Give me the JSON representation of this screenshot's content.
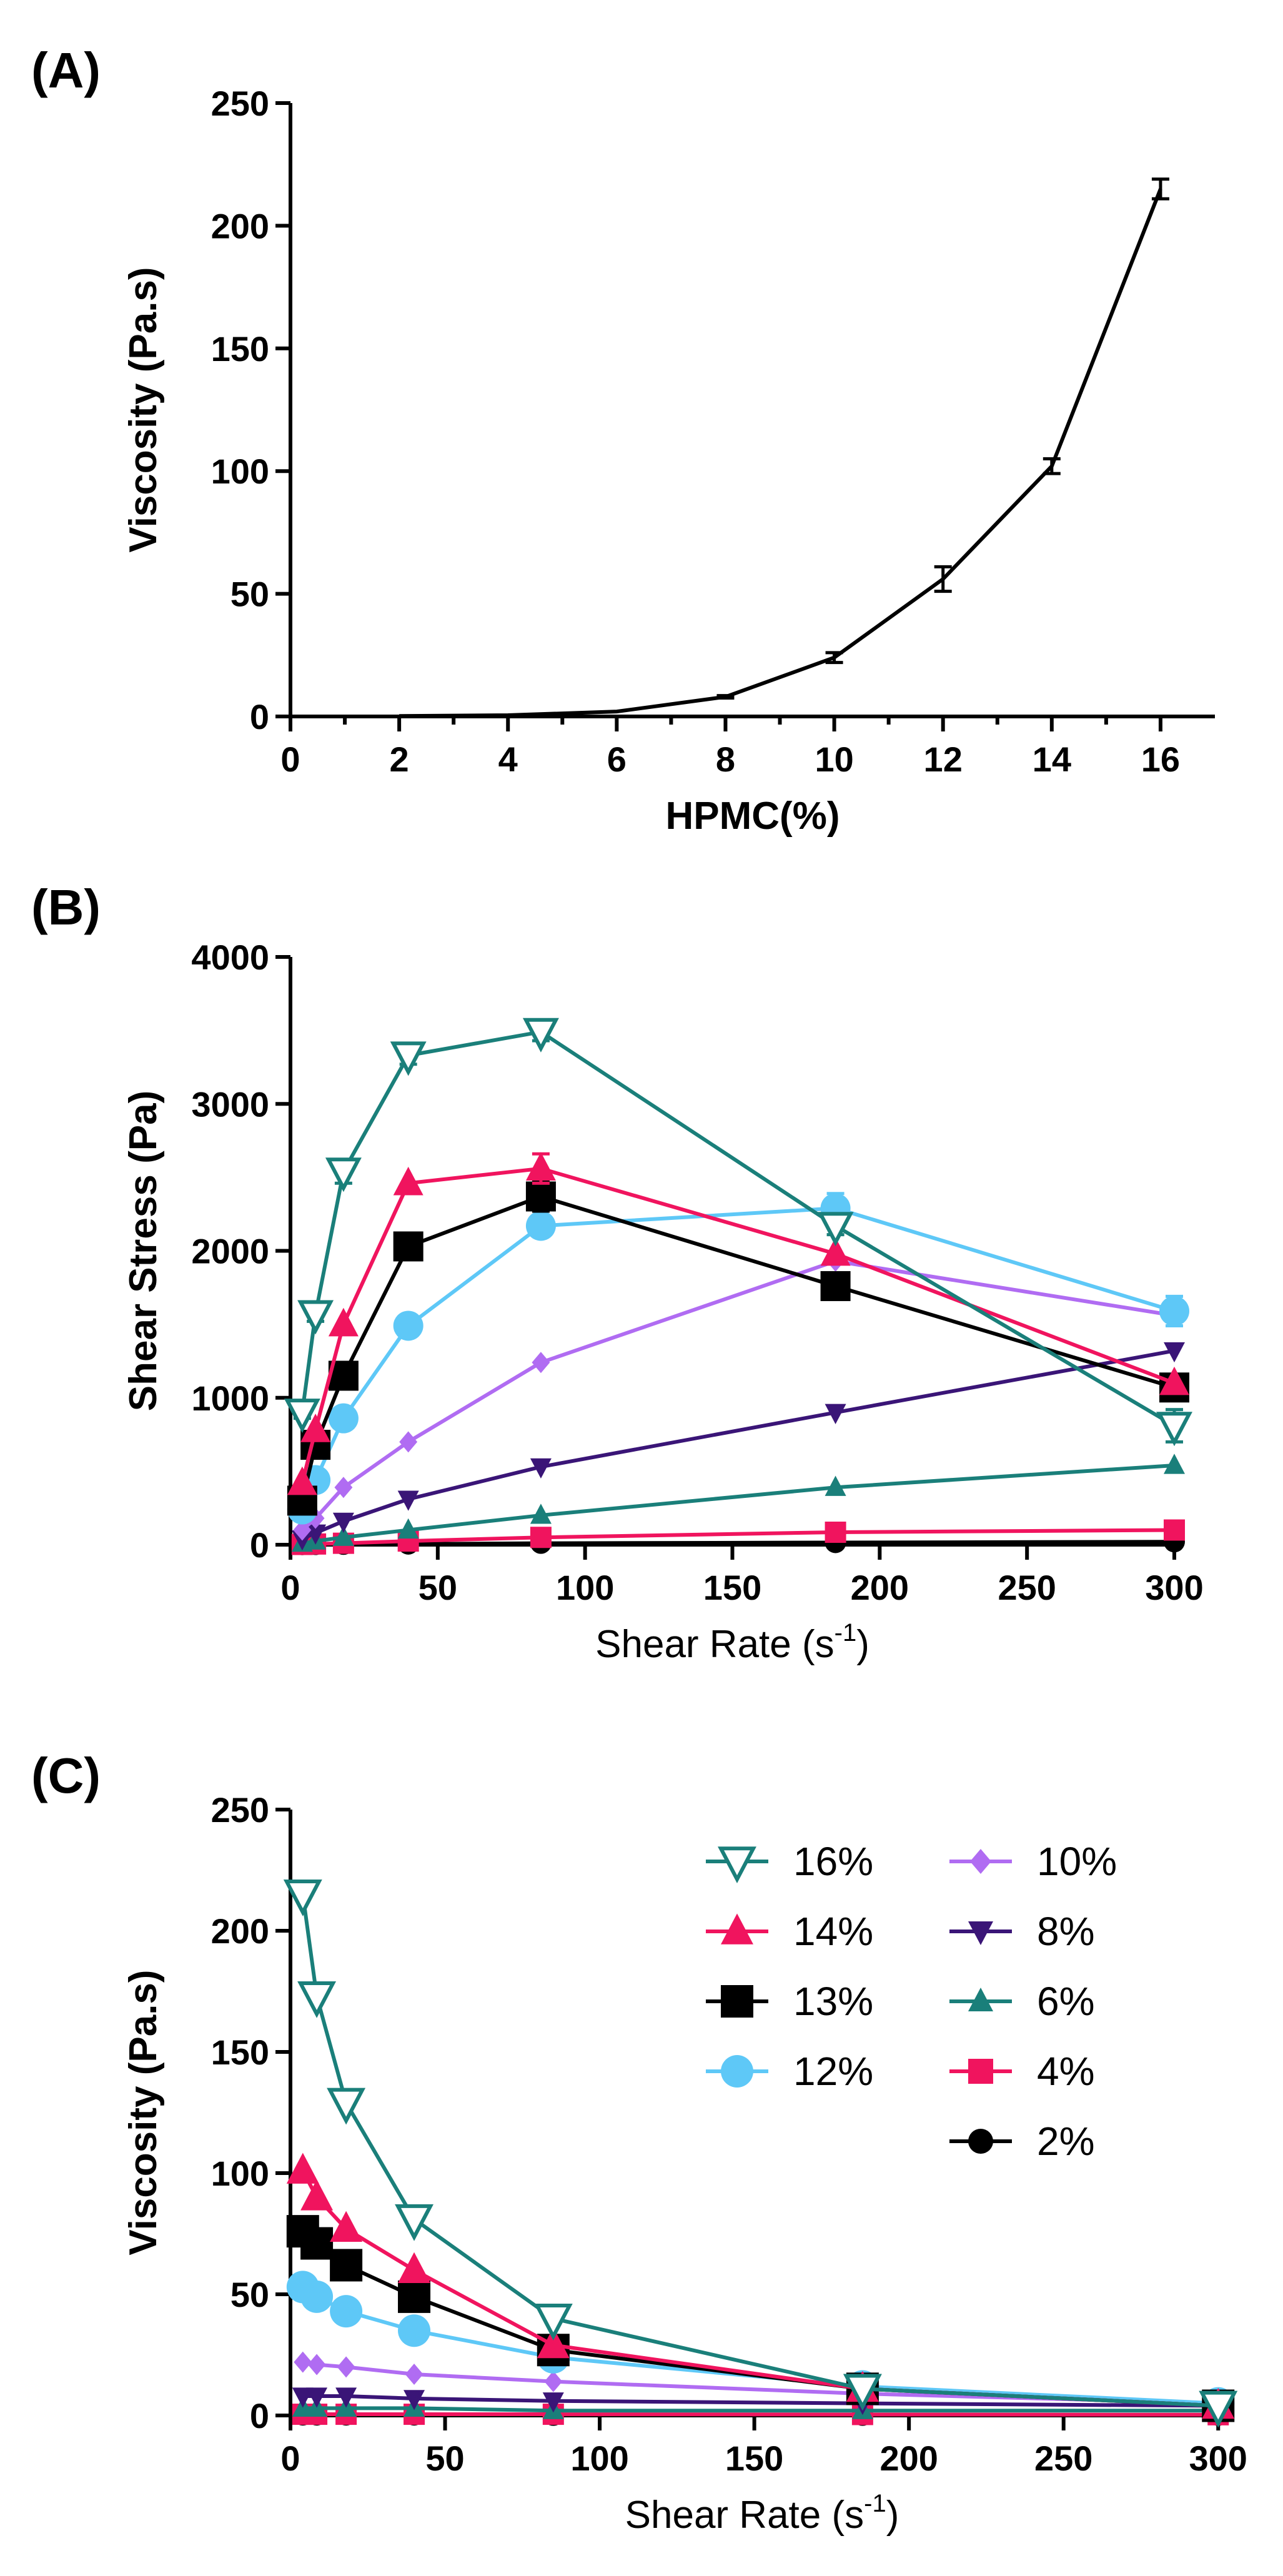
{
  "figure": {
    "panels": [
      {
        "label": "(A)"
      },
      {
        "label": "(B)"
      },
      {
        "label": "(C)"
      }
    ]
  },
  "chart_data": [
    {
      "type": "line",
      "title": "",
      "xlabel": "HPMC(%)",
      "ylabel": "Viscosity (Pa.s)",
      "xlim": [
        0,
        17
      ],
      "ylim": [
        0,
        250
      ],
      "xticks": [
        0,
        2,
        4,
        6,
        8,
        10,
        12,
        14,
        16
      ],
      "yticks": [
        0,
        50,
        100,
        150,
        200,
        250
      ],
      "series": [
        {
          "name": "Viscosity",
          "color": "#000000",
          "x": [
            2,
            4,
            6,
            8,
            10,
            12,
            14,
            16
          ],
          "y": [
            0.2,
            0.5,
            2,
            8,
            24,
            56,
            102,
            215
          ],
          "err": [
            0,
            0,
            0,
            0.5,
            2,
            5,
            3,
            4
          ]
        }
      ]
    },
    {
      "type": "line",
      "title": "",
      "xlabel": "Shear Rate (s",
      "xlabel_sup": "-1",
      "xlabel_end": ")",
      "ylabel": "Shear  Stress (Pa)",
      "xlim": [
        0,
        300
      ],
      "ylim": [
        0,
        4000
      ],
      "xticks": [
        0,
        50,
        100,
        150,
        200,
        250,
        300
      ],
      "yticks": [
        0,
        1000,
        2000,
        3000,
        4000
      ],
      "x": [
        4,
        8.5,
        18,
        40,
        85,
        185,
        300
      ],
      "series": [
        {
          "name": "16%",
          "color": "#1a7f7a",
          "marker": "triangle-down-open",
          "values": [
            900,
            1570,
            2540,
            3330,
            3490,
            2170,
            810
          ],
          "err": [
            40,
            50,
            80,
            60,
            60,
            60,
            110
          ]
        },
        {
          "name": "14%",
          "color": "#f0145e",
          "marker": "triangle-up",
          "values": [
            420,
            780,
            1500,
            2460,
            2560,
            1980,
            1100
          ],
          "err": [
            0,
            0,
            0,
            0,
            100,
            0,
            0
          ]
        },
        {
          "name": "13%",
          "color": "#000000",
          "marker": "square",
          "values": [
            300,
            680,
            1150,
            2030,
            2370,
            1760,
            1070
          ],
          "err": [
            0,
            0,
            0,
            60,
            100,
            0,
            0
          ]
        },
        {
          "name": "12%",
          "color": "#5ec8f7",
          "marker": "circle",
          "values": [
            240,
            440,
            860,
            1490,
            2170,
            2290,
            1590
          ],
          "err": [
            0,
            0,
            0,
            0,
            0,
            100,
            100
          ]
        },
        {
          "name": "10%",
          "color": "#b06cf2",
          "marker": "diamond",
          "values": [
            100,
            180,
            390,
            700,
            1240,
            1930,
            1560
          ],
          "err": [
            0,
            0,
            0,
            0,
            0,
            0,
            0
          ]
        },
        {
          "name": "8%",
          "color": "#3a1577",
          "marker": "triangle-down",
          "values": [
            40,
            80,
            160,
            310,
            530,
            900,
            1320
          ],
          "err": [
            0,
            0,
            0,
            0,
            0,
            0,
            0
          ]
        },
        {
          "name": "6%",
          "color": "#1a7f7a",
          "marker": "triangle-up",
          "values": [
            10,
            25,
            50,
            100,
            200,
            390,
            540
          ],
          "err": [
            0,
            0,
            0,
            0,
            0,
            0,
            0
          ]
        },
        {
          "name": "4%",
          "color": "#f0145e",
          "marker": "square",
          "values": [
            2,
            5,
            10,
            25,
            50,
            85,
            100
          ],
          "err": [
            0,
            0,
            0,
            0,
            0,
            0,
            0
          ]
        },
        {
          "name": "2%",
          "color": "#000000",
          "marker": "circle",
          "values": [
            1,
            2,
            3,
            5,
            10,
            15,
            20
          ],
          "err": [
            0,
            0,
            0,
            0,
            0,
            0,
            0
          ]
        }
      ]
    },
    {
      "type": "line",
      "title": "",
      "xlabel": "Shear Rate (s",
      "xlabel_sup": "-1",
      "xlabel_end": ")",
      "ylabel": "Viscosity (Pa.s)",
      "xlim": [
        0,
        305
      ],
      "ylim": [
        0,
        250
      ],
      "xticks": [
        0,
        50,
        100,
        150,
        200,
        250,
        300
      ],
      "yticks": [
        0,
        50,
        100,
        150,
        200,
        250
      ],
      "x": [
        4,
        8.5,
        18,
        40,
        85,
        185,
        300
      ],
      "legend_position": "top-right",
      "series": [
        {
          "name": "16%",
          "color": "#1a7f7a",
          "marker": "triangle-down-open",
          "values": [
            215,
            173,
            129,
            81,
            40,
            11,
            4
          ]
        },
        {
          "name": "14%",
          "color": "#f0145e",
          "marker": "triangle-up",
          "values": [
            101,
            90,
            77,
            60,
            29,
            11,
            4
          ]
        },
        {
          "name": "13%",
          "color": "#000000",
          "marker": "square",
          "values": [
            76,
            71,
            62,
            49,
            27,
            11,
            4
          ]
        },
        {
          "name": "12%",
          "color": "#5ec8f7",
          "marker": "circle",
          "values": [
            53,
            49,
            43,
            35,
            24,
            12,
            5
          ]
        },
        {
          "name": "10%",
          "color": "#b06cf2",
          "marker": "diamond",
          "values": [
            22,
            21,
            20,
            17,
            14,
            9,
            5
          ]
        },
        {
          "name": "8%",
          "color": "#3a1577",
          "marker": "triangle-down",
          "values": [
            8,
            8,
            8,
            7,
            6,
            5,
            4
          ]
        },
        {
          "name": "6%",
          "color": "#1a7f7a",
          "marker": "triangle-up",
          "values": [
            3,
            3,
            3,
            3,
            2,
            2,
            2
          ]
        },
        {
          "name": "4%",
          "color": "#f0145e",
          "marker": "square",
          "values": [
            0.5,
            0.5,
            0.5,
            0.5,
            0.5,
            0.4,
            0.3
          ]
        },
        {
          "name": "2%",
          "color": "#000000",
          "marker": "circle",
          "values": [
            0.2,
            0.2,
            0.2,
            0.2,
            0.1,
            0.1,
            0.1
          ]
        }
      ]
    }
  ]
}
